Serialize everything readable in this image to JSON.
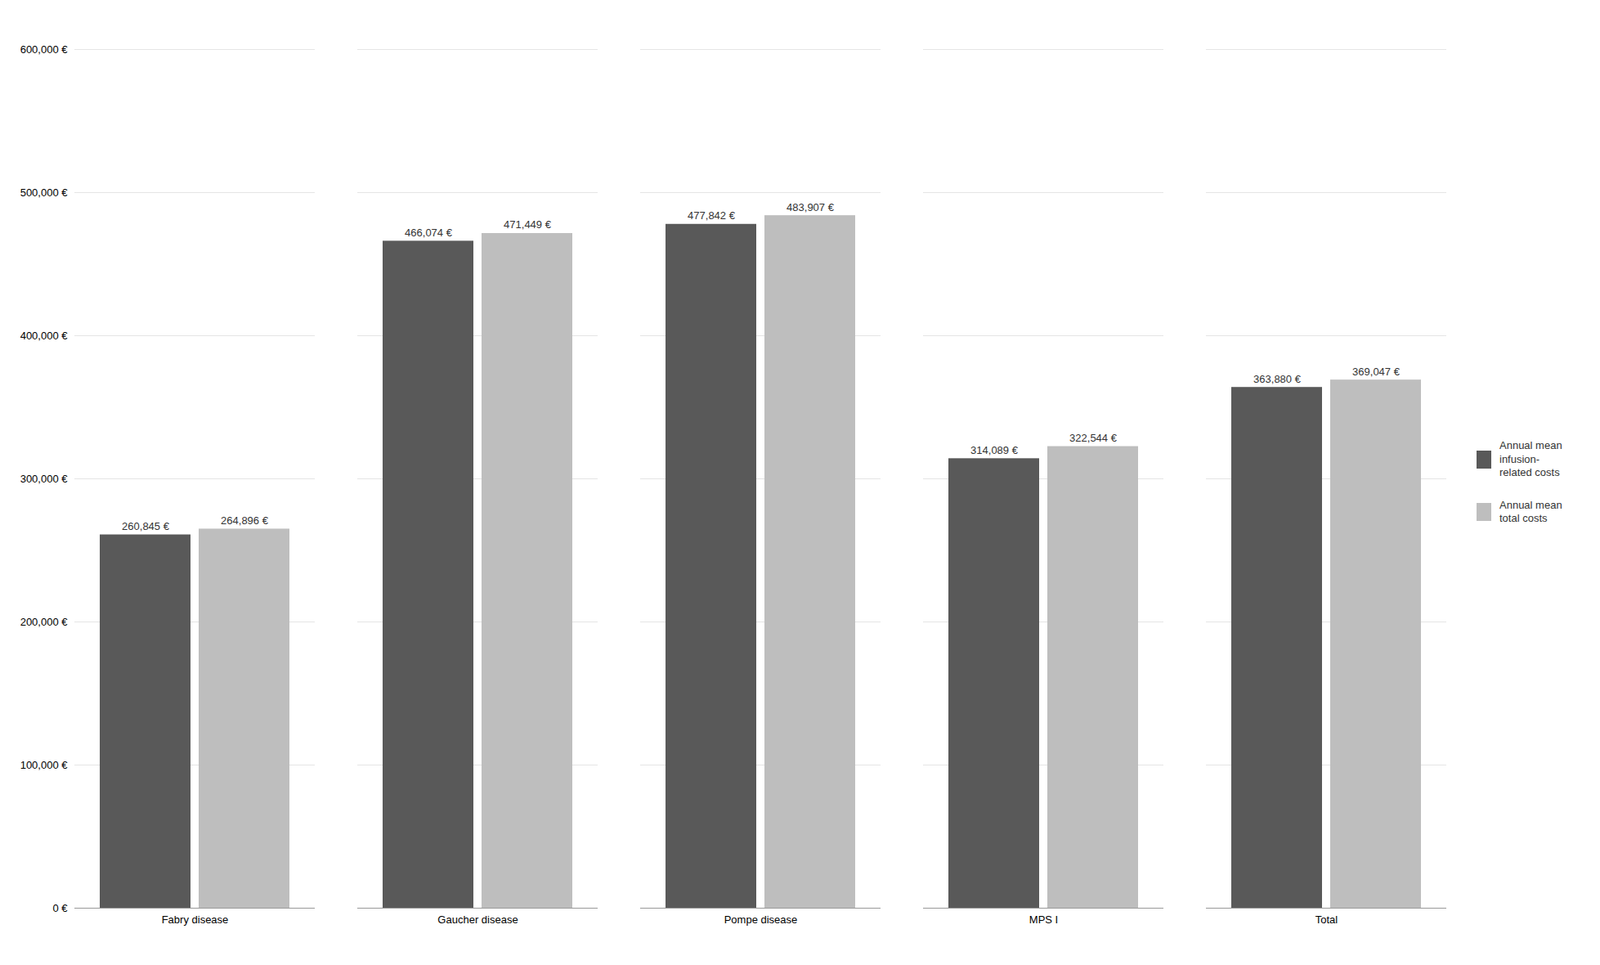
{
  "chart_data": {
    "type": "bar",
    "categories": [
      "Fabry disease",
      "Gaucher disease",
      "Pompe disease",
      "MPS I",
      "Total"
    ],
    "series": [
      {
        "name": "Annual mean\ninfusion-\nrelated costs",
        "color": "#595959",
        "values": [
          260845,
          466074,
          477842,
          314089,
          363880
        ],
        "value_labels": [
          "260,845 €",
          "466,074 €",
          "477,842 €",
          "314,089 €",
          "363,880 €"
        ]
      },
      {
        "name": "Annual mean\ntotal costs",
        "color": "#bebebe",
        "values": [
          264896,
          471449,
          483907,
          322544,
          369047
        ],
        "value_labels": [
          "264,896 €",
          "471,449 €",
          "483,907 €",
          "322,544 €",
          "369,047 €"
        ]
      }
    ],
    "ylim": [
      0,
      600000
    ],
    "yticks": [
      {
        "value": 0,
        "label": "0 €"
      },
      {
        "value": 100000,
        "label": "100,000 €"
      },
      {
        "value": 200000,
        "label": "200,000 €"
      },
      {
        "value": 300000,
        "label": "300,000 €"
      },
      {
        "value": 400000,
        "label": "400,000 €"
      },
      {
        "value": 500000,
        "label": "500,000 €"
      },
      {
        "value": 600000,
        "label": "600,000 €"
      }
    ],
    "grid": true,
    "legend": "right",
    "data_labels": true
  }
}
